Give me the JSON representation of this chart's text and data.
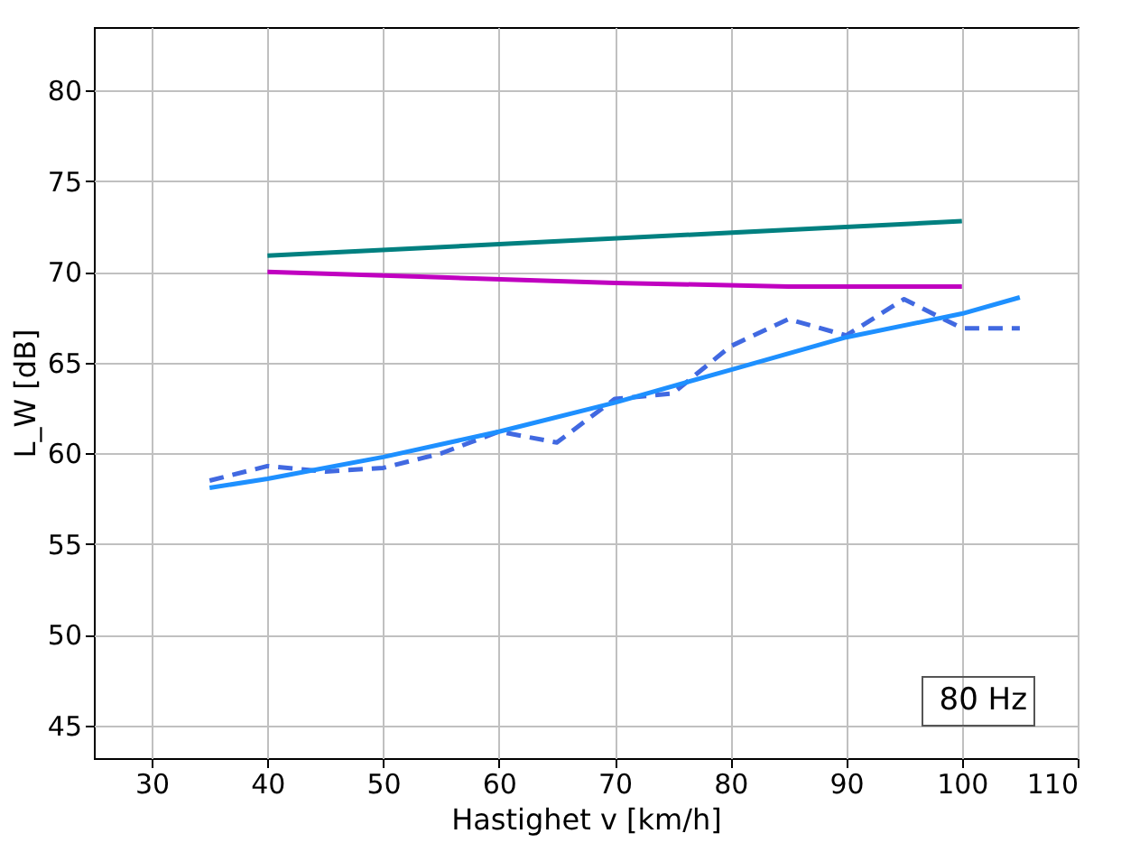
{
  "chart_data": {
    "type": "line",
    "xlabel": "Hastighet v [km/h]",
    "ylabel": "L_W [dB]",
    "xlim": [
      25,
      110
    ],
    "ylim": [
      43.2,
      83.5
    ],
    "xticks": [
      30,
      40,
      50,
      60,
      70,
      80,
      90,
      100,
      110
    ],
    "yticks": [
      45,
      50,
      55,
      60,
      65,
      70,
      75,
      80
    ],
    "grid": true,
    "annotations": [
      "80 Hz"
    ],
    "series": [
      {
        "color": "#008080",
        "x": [
          40,
          100
        ],
        "values": [
          70.9,
          72.8
        ]
      },
      {
        "color": "#c000c0",
        "x": [
          40,
          55,
          70,
          85,
          100
        ],
        "values": [
          70.0,
          69.7,
          69.4,
          69.2,
          69.2
        ]
      },
      {
        "color": "#4169e1",
        "line_style": "dashed",
        "x": [
          35,
          40,
          45,
          50,
          55,
          60,
          65,
          70,
          75,
          80,
          85,
          90,
          95,
          100,
          105
        ],
        "values": [
          58.5,
          59.3,
          59.0,
          59.2,
          60.0,
          61.2,
          60.6,
          63.0,
          63.3,
          65.9,
          67.4,
          66.5,
          68.5,
          66.9,
          66.9
        ]
      },
      {
        "color": "#1e90ff",
        "x": [
          35,
          40,
          50,
          60,
          70,
          80,
          90,
          100,
          105
        ],
        "values": [
          58.1,
          58.6,
          59.8,
          61.2,
          62.8,
          64.6,
          66.4,
          67.7,
          68.6
        ]
      }
    ]
  }
}
